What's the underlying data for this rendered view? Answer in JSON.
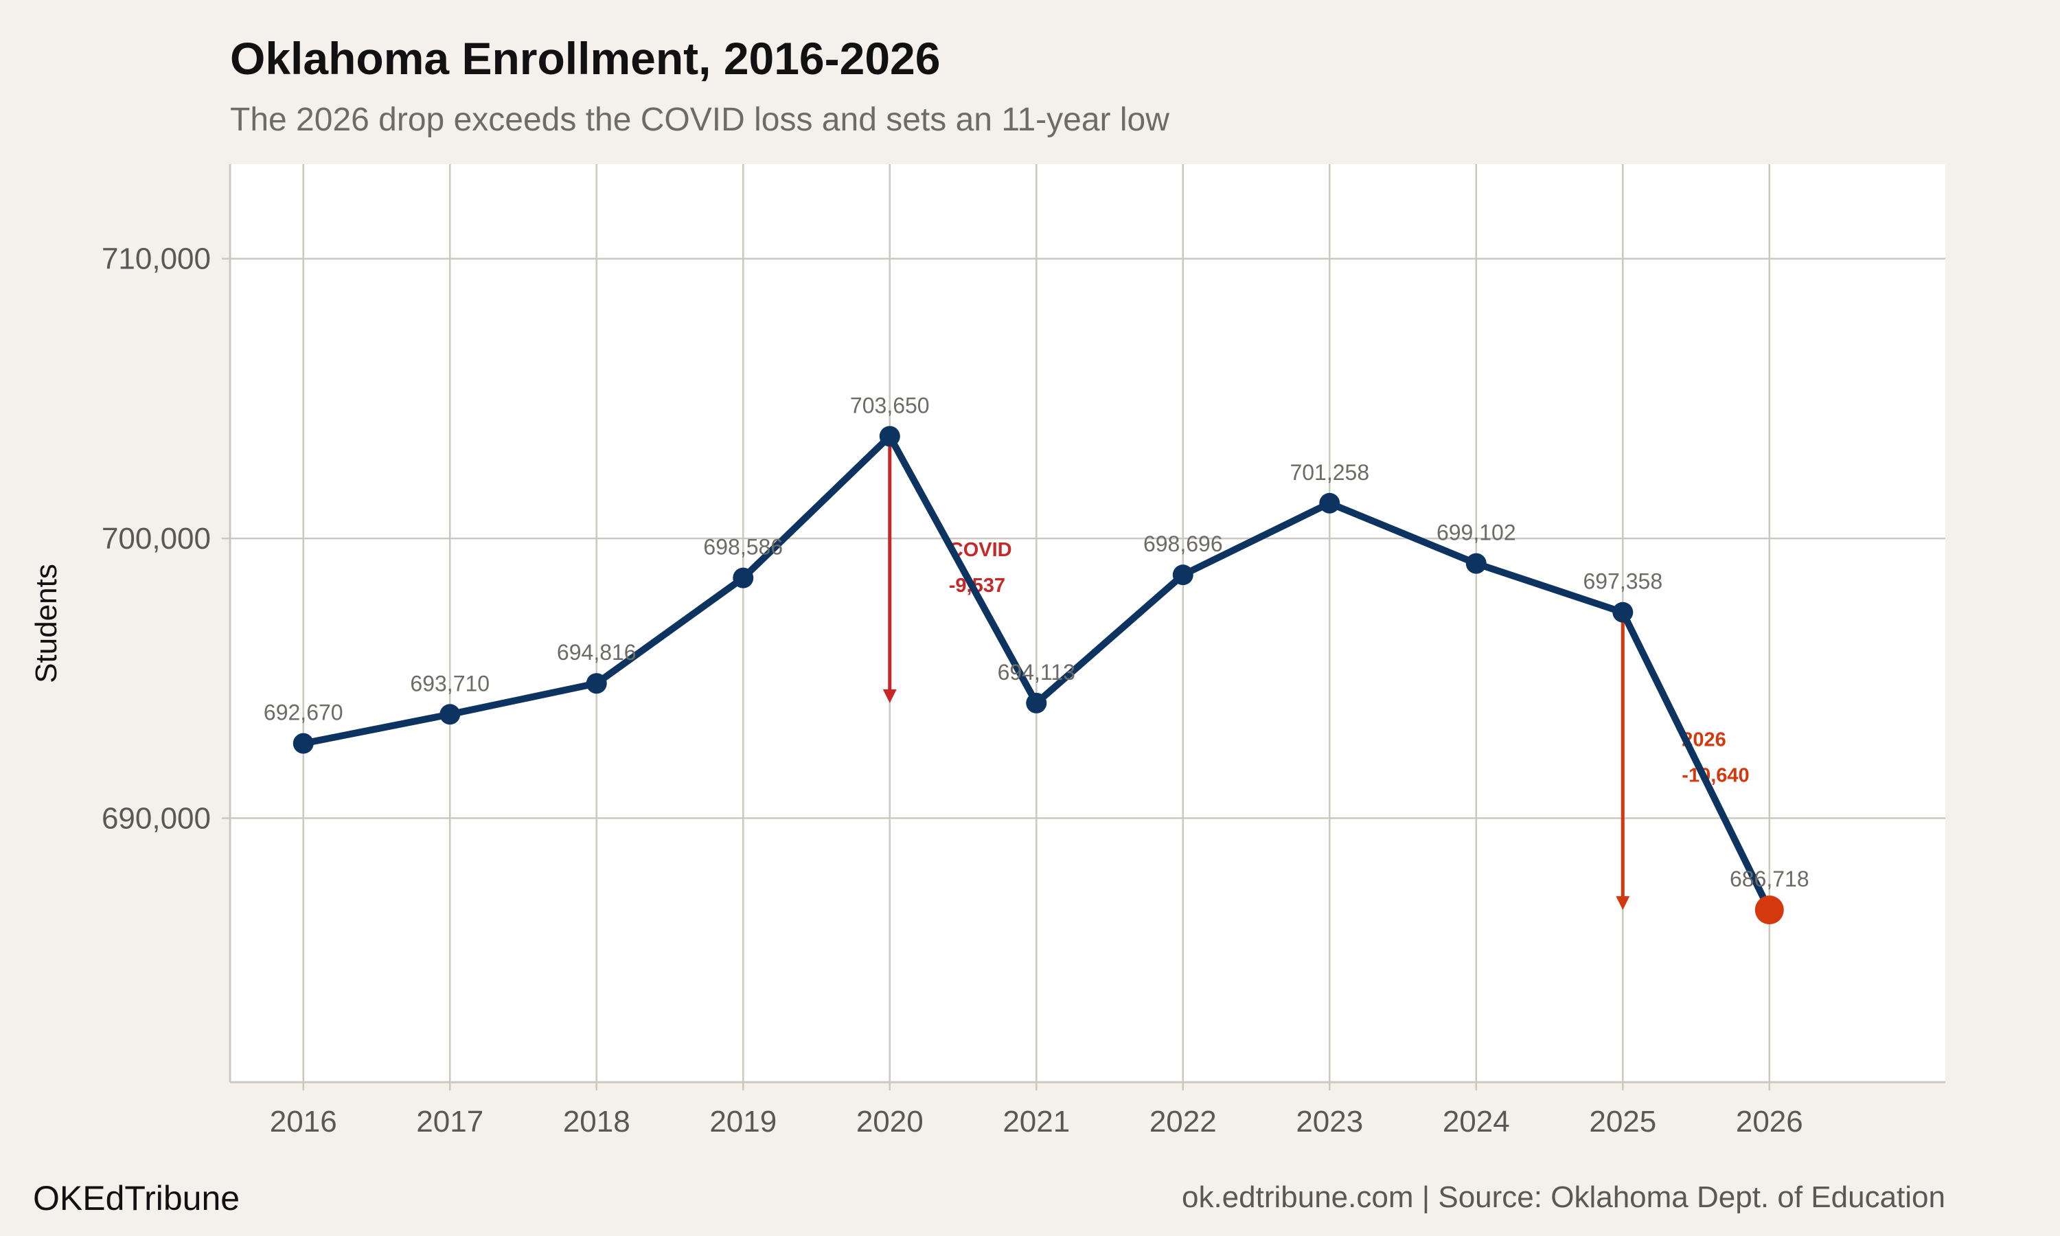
{
  "chart_data": {
    "type": "line",
    "title": "Oklahoma Enrollment, 2016-2026",
    "subtitle": "The 2026 drop exceeds the COVID loss and sets an 11-year low",
    "xlabel": "",
    "ylabel": "Students",
    "x": [
      2016,
      2017,
      2018,
      2019,
      2020,
      2021,
      2022,
      2023,
      2024,
      2025,
      2026
    ],
    "x_tick_labels": [
      "2016",
      "2017",
      "2018",
      "2019",
      "2020",
      "2021",
      "2022",
      "2023",
      "2024",
      "2025",
      "2026"
    ],
    "y": [
      692670,
      693710,
      694816,
      698586,
      703650,
      694113,
      698696,
      701258,
      699102,
      697358,
      686718
    ],
    "point_labels": [
      "692,670",
      "693,710",
      "694,816",
      "698,586",
      "703,650",
      "694,113",
      "698,696",
      "701,258",
      "699,102",
      "697,358",
      "686,718"
    ],
    "y_ticks": [
      690000,
      700000,
      710000
    ],
    "y_tick_labels": [
      "690,000",
      "700,000",
      "710,000"
    ],
    "xlim": [
      2015.5,
      2027.2
    ],
    "ylim": [
      680560,
      713380
    ],
    "grid": true,
    "legend": "none",
    "annotations": [
      {
        "label": "COVID",
        "value_label": "-9,537",
        "arrow_x": 2020,
        "from": 703650,
        "to": 694113,
        "color": "#c62828"
      },
      {
        "label": "2026",
        "value_label": "-10,640",
        "arrow_x": 2025,
        "from": 697358,
        "to": 686718,
        "color": "#d4380d"
      }
    ],
    "colors": {
      "line": "#0d3461",
      "highlight": "#d4380d",
      "grid": "#cdc7bf",
      "panel": "#ffffff",
      "background": "#f4f1ec"
    }
  },
  "footer": {
    "brand": "OKEdTribune",
    "source": "ok.edtribune.com | Source: Oklahoma Dept. of Education"
  }
}
